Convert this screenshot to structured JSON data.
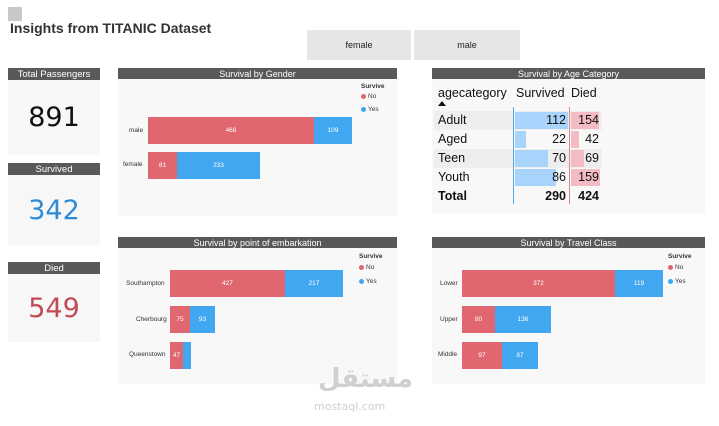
{
  "page_title": "Insights from TITANIC Dataset",
  "slicer": {
    "options": [
      "female",
      "male"
    ]
  },
  "cards": {
    "total": {
      "title": "Total Passengers",
      "value": "891",
      "color": "#111111"
    },
    "survived": {
      "title": "Survived",
      "value": "342",
      "color": "#2e8bd6"
    },
    "died": {
      "title": "Died",
      "value": "549",
      "color": "#c24a56"
    }
  },
  "legend": {
    "title": "Survive",
    "no": "No",
    "yes": "Yes"
  },
  "colors": {
    "no": "#e06670",
    "yes": "#41a7f0",
    "header": "#595959"
  },
  "gender_chart": {
    "title": "Survival by Gender",
    "rows": [
      {
        "label": "male",
        "no": 468,
        "yes": 109
      },
      {
        "label": "female",
        "no": 81,
        "yes": 233
      }
    ]
  },
  "embark_chart": {
    "title": "Survival by point of embarkation",
    "rows": [
      {
        "label": "Southampton",
        "no": 427,
        "yes": 217
      },
      {
        "label": "Cherbourg",
        "no": 75,
        "yes": 93
      },
      {
        "label": "Queenstown",
        "no": 47,
        "yes": ""
      }
    ]
  },
  "class_chart": {
    "title": "Survival by Travel Class",
    "rows": [
      {
        "label": "Lower",
        "no": 372,
        "yes": 119
      },
      {
        "label": "Upper",
        "no": 80,
        "yes": 136
      },
      {
        "label": "Middle",
        "no": 97,
        "yes": 87
      }
    ]
  },
  "age_table": {
    "title": "Survival by Age Category",
    "headers": [
      "agecategory",
      "Survived",
      "Died"
    ],
    "rows": [
      {
        "label": "Adult",
        "survived": 112,
        "died": 154
      },
      {
        "label": "Aged",
        "survived": 22,
        "died": 42
      },
      {
        "label": "Teen",
        "survived": 70,
        "died": 69
      },
      {
        "label": "Youth",
        "survived": 86,
        "died": 159
      }
    ],
    "total": {
      "label": "Total",
      "survived": 290,
      "died": 424
    }
  },
  "watermark": {
    "arabic": "مستقل",
    "latin": "mostaql.com"
  }
}
